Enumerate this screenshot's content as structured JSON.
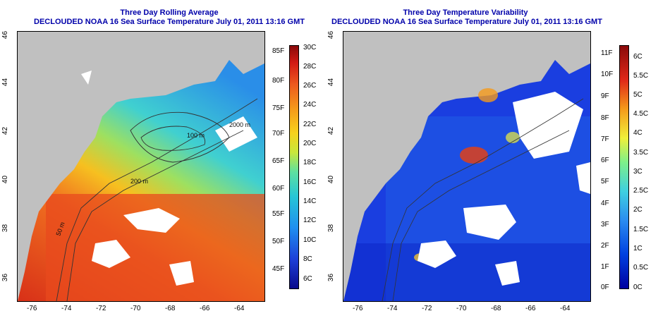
{
  "left": {
    "title_line1": "Three Day Rolling Average",
    "title_line2": "DECLOUDED NOAA 16 Sea Surface Temperature July 01, 2011 13:16 GMT",
    "contour_labels": [
      "50 m",
      "200 m",
      "100 m",
      "2000 m"
    ],
    "colorbar": {
      "fahrenheit": [
        "85F",
        "80F",
        "75F",
        "70F",
        "65F",
        "60F",
        "55F",
        "50F",
        "45F"
      ],
      "celsius": [
        "30C",
        "28C",
        "26C",
        "24C",
        "22C",
        "20C",
        "18C",
        "16C",
        "14C",
        "12C",
        "10C",
        "8C",
        "6C"
      ]
    }
  },
  "right": {
    "title_line1": "Three Day Temperature Variability",
    "title_line2": "DECLOUDED NOAA 16 Sea Surface Temperature July 01, 2011 13:16 GMT",
    "colorbar": {
      "fahrenheit": [
        "11F",
        "10F",
        "9F",
        "8F",
        "7F",
        "6F",
        "5F",
        "4F",
        "3F",
        "2F",
        "1F",
        "0F"
      ],
      "celsius": [
        "6C",
        "5.5C",
        "5C",
        "4.5C",
        "4C",
        "3.5C",
        "3C",
        "2.5C",
        "2C",
        "1.5C",
        "1C",
        "0.5C",
        "0C"
      ]
    }
  },
  "axes": {
    "x_ticks": [
      "-76",
      "-74",
      "-72",
      "-70",
      "-68",
      "-66",
      "-64"
    ],
    "y_ticks": [
      "36",
      "38",
      "40",
      "42",
      "44",
      "46"
    ]
  },
  "colors": {
    "land": "#c0c0c0",
    "title": "#0000aa",
    "sst_scale": [
      "#0a0a8c",
      "#1d3fd8",
      "#1f8ff0",
      "#27c6d6",
      "#5ee0a0",
      "#c8e83c",
      "#f6d21c",
      "#f59a1a",
      "#ee5a1e",
      "#d21a14",
      "#8a0a0a"
    ],
    "var_scale": [
      "#0000a0",
      "#0040e0",
      "#2b8cf0",
      "#3fd0e0",
      "#7ef08a",
      "#f0f03a",
      "#f59a1a",
      "#e02818",
      "#8a0a0a"
    ]
  }
}
